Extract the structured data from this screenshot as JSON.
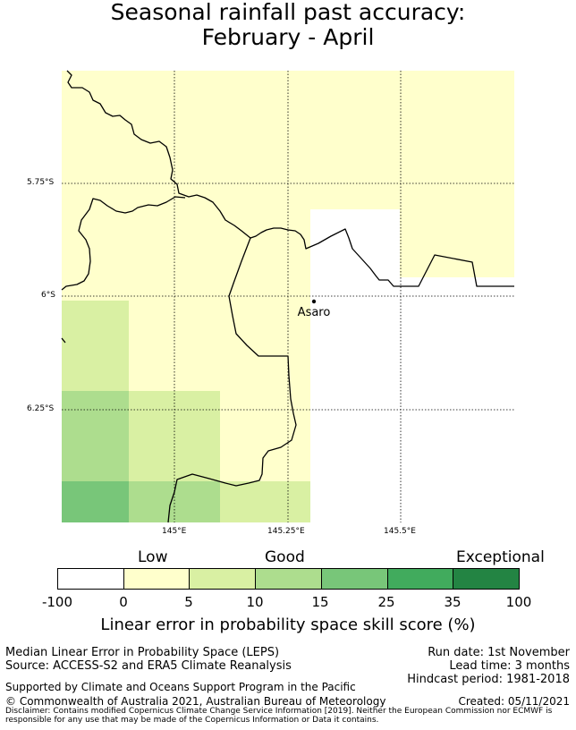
{
  "title": {
    "line1": "Seasonal rainfall past accuracy:",
    "line2": "February - April"
  },
  "map": {
    "lat_ticks": [
      "5.75°S",
      "6°S",
      "6.25°S"
    ],
    "lon_ticks": [
      "145°E",
      "145.25°E",
      "145.5°E"
    ],
    "town": "Asaro",
    "colors": {
      "coast": "#000000",
      "grid": "#000000"
    }
  },
  "colorbar": {
    "words": [
      "Low",
      "Good",
      "Exceptional"
    ],
    "ticks": [
      "-100",
      "0",
      "5",
      "10",
      "15",
      "25",
      "35",
      "100"
    ],
    "colors": [
      "#ffffff",
      "#ffffcc",
      "#d9f0a3",
      "#addd8e",
      "#78c679",
      "#41ab5d",
      "#238443"
    ],
    "label": "Linear error in probability space skill score (%)"
  },
  "footer": {
    "left1": "Median Linear Error in Probability Space (LEPS)",
    "left2": "Source: ACCESS-S2 and ERA5 Climate Reanalysis",
    "right1": "Run date: 1st November",
    "right2": "Lead time: 3 months",
    "right3": "Hindcast period: 1981-2018",
    "support": "Supported by Climate and Oceans Support Program in the Pacific",
    "copyright": "© Commonwealth of Australia 2021, Australian Bureau of Meteorology",
    "created": "Created: 05/11/2021",
    "disclaimer": "Disclaimer: Contains modified Copernicus Climate Change Service Information [2019]. Neither the European Commission nor ECMWF is responsible for any use that may be made of the Copernicus Information or Data it contains."
  }
}
